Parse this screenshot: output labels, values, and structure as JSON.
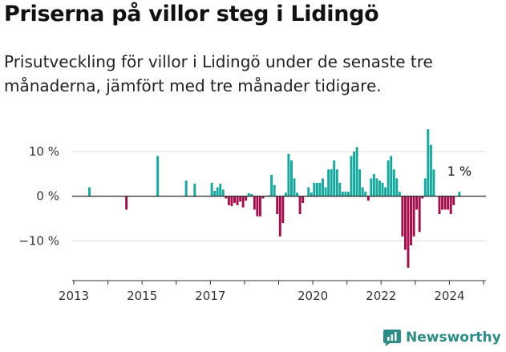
{
  "header": {
    "title": "Priserna på villor steg i Lidingö",
    "subtitle": "Prisutveckling för villor i Lidingö under de senaste tre månaderna, jämfört med tre månader tidigare."
  },
  "brand": {
    "name": "Newsworthy",
    "icon": "newsworthy-logo-icon",
    "color": "#2c8c86"
  },
  "colors": {
    "positive": "#13a89e",
    "negative": "#a30d4c",
    "zero_line": "#222222",
    "grid": "#dddddd"
  },
  "chart_data": {
    "type": "bar",
    "y_unit": "%",
    "ylim": [
      -18,
      17
    ],
    "y_ticks": [
      {
        "value": 10,
        "label": "10 %"
      },
      {
        "value": 0,
        "label": "0 %"
      },
      {
        "value": -10,
        "label": "−10 %"
      }
    ],
    "x_ticks": [
      {
        "year": 2013,
        "label": "2013"
      },
      {
        "year": 2015,
        "label": "2015"
      },
      {
        "year": 2017,
        "label": "2017"
      },
      {
        "year": 2020,
        "label": "2020"
      },
      {
        "year": 2022,
        "label": "2022"
      },
      {
        "year": 2024,
        "label": "2024"
      }
    ],
    "grid": true,
    "annotation": "1 %",
    "points": [
      {
        "x": "2013-06",
        "y": 2.0
      },
      {
        "x": "2014-07",
        "y": -3.0
      },
      {
        "x": "2015-06",
        "y": 9.0
      },
      {
        "x": "2016-04",
        "y": 3.5
      },
      {
        "x": "2016-07",
        "y": 2.8
      },
      {
        "x": "2017-01",
        "y": 3.0
      },
      {
        "x": "2017-02",
        "y": 1.2
      },
      {
        "x": "2017-03",
        "y": 2.0
      },
      {
        "x": "2017-04",
        "y": 2.8
      },
      {
        "x": "2017-05",
        "y": 1.5
      },
      {
        "x": "2017-06",
        "y": -0.5
      },
      {
        "x": "2017-07",
        "y": -2.0
      },
      {
        "x": "2017-08",
        "y": -2.2
      },
      {
        "x": "2017-09",
        "y": -1.5
      },
      {
        "x": "2017-10",
        "y": -2.0
      },
      {
        "x": "2017-11",
        "y": -1.2
      },
      {
        "x": "2017-12",
        "y": -2.5
      },
      {
        "x": "2018-01",
        "y": -1.0
      },
      {
        "x": "2018-02",
        "y": 0.7
      },
      {
        "x": "2018-03",
        "y": 0.5
      },
      {
        "x": "2018-04",
        "y": -3.0
      },
      {
        "x": "2018-05",
        "y": -4.5
      },
      {
        "x": "2018-06",
        "y": -4.5
      },
      {
        "x": "2018-07",
        "y": -0.5
      },
      {
        "x": "2018-09",
        "y": 0.2
      },
      {
        "x": "2018-10",
        "y": 4.8
      },
      {
        "x": "2018-11",
        "y": 2.5
      },
      {
        "x": "2018-12",
        "y": -4.0
      },
      {
        "x": "2019-01",
        "y": -9.0
      },
      {
        "x": "2019-02",
        "y": -6.0
      },
      {
        "x": "2019-03",
        "y": 0.8
      },
      {
        "x": "2019-04",
        "y": 9.5
      },
      {
        "x": "2019-05",
        "y": 8.0
      },
      {
        "x": "2019-06",
        "y": 4.0
      },
      {
        "x": "2019-07",
        "y": 0.8
      },
      {
        "x": "2019-08",
        "y": -4.0
      },
      {
        "x": "2019-09",
        "y": -1.5
      },
      {
        "x": "2019-11",
        "y": 2.0
      },
      {
        "x": "2019-12",
        "y": 0.8
      },
      {
        "x": "2020-01",
        "y": 3.0
      },
      {
        "x": "2020-02",
        "y": 3.0
      },
      {
        "x": "2020-03",
        "y": 3.0
      },
      {
        "x": "2020-04",
        "y": 4.0
      },
      {
        "x": "2020-05",
        "y": 2.0
      },
      {
        "x": "2020-06",
        "y": 6.0
      },
      {
        "x": "2020-07",
        "y": 6.0
      },
      {
        "x": "2020-08",
        "y": 8.0
      },
      {
        "x": "2020-09",
        "y": 6.0
      },
      {
        "x": "2020-10",
        "y": 3.0
      },
      {
        "x": "2020-11",
        "y": 1.0
      },
      {
        "x": "2020-12",
        "y": 1.0
      },
      {
        "x": "2021-01",
        "y": 1.0
      },
      {
        "x": "2021-02",
        "y": 9.0
      },
      {
        "x": "2021-03",
        "y": 10.0
      },
      {
        "x": "2021-04",
        "y": 11.0
      },
      {
        "x": "2021-05",
        "y": 6.0
      },
      {
        "x": "2021-06",
        "y": 2.0
      },
      {
        "x": "2021-07",
        "y": 1.0
      },
      {
        "x": "2021-08",
        "y": -1.0
      },
      {
        "x": "2021-09",
        "y": 4.0
      },
      {
        "x": "2021-10",
        "y": 5.0
      },
      {
        "x": "2021-11",
        "y": 4.0
      },
      {
        "x": "2021-12",
        "y": 3.5
      },
      {
        "x": "2022-01",
        "y": 3.0
      },
      {
        "x": "2022-02",
        "y": 2.0
      },
      {
        "x": "2022-03",
        "y": 8.0
      },
      {
        "x": "2022-04",
        "y": 9.0
      },
      {
        "x": "2022-05",
        "y": 6.0
      },
      {
        "x": "2022-06",
        "y": 4.0
      },
      {
        "x": "2022-07",
        "y": 1.0
      },
      {
        "x": "2022-08",
        "y": -9.0
      },
      {
        "x": "2022-09",
        "y": -12.0
      },
      {
        "x": "2022-10",
        "y": -16.0
      },
      {
        "x": "2022-11",
        "y": -11.0
      },
      {
        "x": "2022-12",
        "y": -9.0
      },
      {
        "x": "2023-01",
        "y": -3.0
      },
      {
        "x": "2023-02",
        "y": -8.0
      },
      {
        "x": "2023-03",
        "y": -0.5
      },
      {
        "x": "2023-04",
        "y": 4.0
      },
      {
        "x": "2023-05",
        "y": 15.0
      },
      {
        "x": "2023-06",
        "y": 11.5
      },
      {
        "x": "2023-07",
        "y": 6.0
      },
      {
        "x": "2023-09",
        "y": -4.0
      },
      {
        "x": "2023-10",
        "y": -3.0
      },
      {
        "x": "2023-11",
        "y": -3.0
      },
      {
        "x": "2023-12",
        "y": -3.0
      },
      {
        "x": "2024-01",
        "y": -4.0
      },
      {
        "x": "2024-02",
        "y": -2.0
      },
      {
        "x": "2024-04",
        "y": 1.0
      }
    ]
  }
}
